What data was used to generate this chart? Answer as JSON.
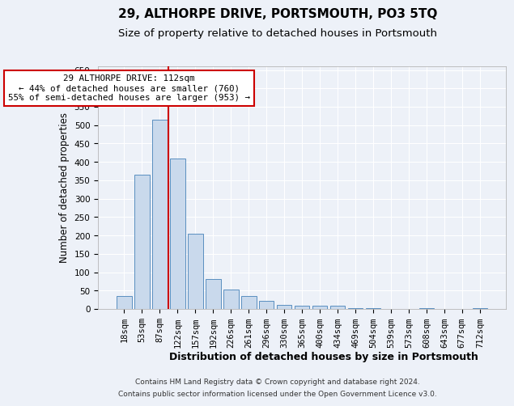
{
  "title": "29, ALTHORPE DRIVE, PORTSMOUTH, PO3 5TQ",
  "subtitle": "Size of property relative to detached houses in Portsmouth",
  "xlabel": "Distribution of detached houses by size in Portsmouth",
  "ylabel": "Number of detached properties",
  "categories": [
    "18sqm",
    "53sqm",
    "87sqm",
    "122sqm",
    "157sqm",
    "192sqm",
    "226sqm",
    "261sqm",
    "296sqm",
    "330sqm",
    "365sqm",
    "400sqm",
    "434sqm",
    "469sqm",
    "504sqm",
    "539sqm",
    "573sqm",
    "608sqm",
    "643sqm",
    "677sqm",
    "712sqm"
  ],
  "values": [
    35,
    365,
    515,
    410,
    205,
    82,
    52,
    35,
    22,
    12,
    8,
    8,
    8,
    3,
    3,
    0,
    0,
    3,
    0,
    0,
    3
  ],
  "bar_color": "#c9d9ec",
  "bar_edge_color": "#5a8fc0",
  "vline_x": 2.5,
  "vline_color": "#cc0000",
  "annotation_text": "29 ALTHORPE DRIVE: 112sqm\n← 44% of detached houses are smaller (760)\n55% of semi-detached houses are larger (953) →",
  "annotation_box_color": "white",
  "annotation_box_edge": "#cc0000",
  "ylim": [
    0,
    660
  ],
  "yticks": [
    0,
    50,
    100,
    150,
    200,
    250,
    300,
    350,
    400,
    450,
    500,
    550,
    600,
    650
  ],
  "footnote1": "Contains HM Land Registry data © Crown copyright and database right 2024.",
  "footnote2": "Contains public sector information licensed under the Open Government Licence v3.0.",
  "background_color": "#edf1f8",
  "grid_color": "#ffffff",
  "title_fontsize": 11,
  "subtitle_fontsize": 9.5,
  "tick_fontsize": 7.5,
  "ylabel_fontsize": 8.5,
  "xlabel_fontsize": 9,
  "footnote_fontsize": 6.5
}
